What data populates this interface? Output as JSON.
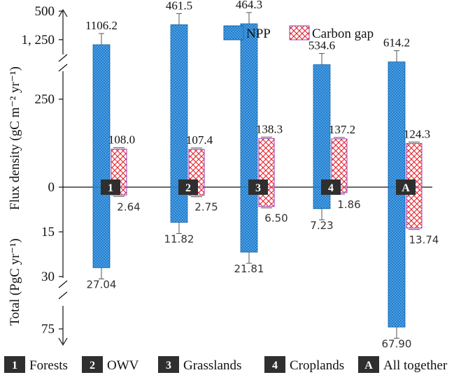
{
  "chart_data": {
    "type": "bar",
    "ylabel_top": "Flux density (gC m⁻² yr⁻¹)",
    "ylabel_bottom": "Total (PgC yr⁻¹)",
    "y_ticks_top": [
      {
        "value": 1250,
        "label": "1, 250"
      },
      {
        "value": 500,
        "label": "500"
      },
      {
        "value": 250,
        "label": "250"
      },
      {
        "value": 0,
        "label": "0"
      }
    ],
    "y_ticks_bottom": [
      {
        "value": 15,
        "label": "15"
      },
      {
        "value": 30,
        "label": "30"
      },
      {
        "value": 75,
        "label": "75"
      }
    ],
    "categories": [
      {
        "badge": "1",
        "name": "Forests"
      },
      {
        "badge": "2",
        "name": "OWV"
      },
      {
        "badge": "3",
        "name": "Grasslands"
      },
      {
        "badge": "4",
        "name": "Croplands"
      },
      {
        "badge": "A",
        "name": "All together"
      }
    ],
    "series": [
      {
        "name": "NPP",
        "density": [
          1106.2,
          461.5,
          464.3,
          534.6,
          614.2
        ],
        "density_labels": [
          "1106.2",
          "461.5",
          "464.3",
          "534.6",
          "614.2"
        ],
        "total": [
          27.04,
          11.82,
          21.81,
          7.23,
          67.9
        ],
        "total_labels": [
          "27.04",
          "11.82",
          "21.81",
          "7.23",
          "67.90"
        ]
      },
      {
        "name": "Carbon gap",
        "density": [
          108.0,
          107.4,
          138.3,
          137.2,
          124.3
        ],
        "density_labels": [
          "108.0",
          "107.4",
          "138.3",
          "137.2",
          "124.3"
        ],
        "total": [
          2.64,
          2.75,
          6.5,
          1.86,
          13.74
        ],
        "total_labels": [
          "2.64",
          "2.75",
          "6.50",
          "1.86",
          "13.74"
        ]
      }
    ],
    "legend_position": "top-right",
    "colors": {
      "npp": "#1f7ed0",
      "npp_dot": "#9fd0f5",
      "gap": "#e8202a",
      "gap_edge": "#9b3bb5"
    }
  }
}
